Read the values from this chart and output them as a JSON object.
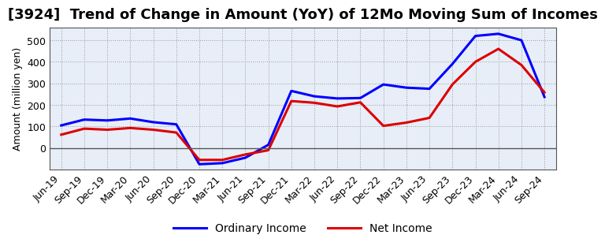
{
  "title": "[3924]  Trend of Change in Amount (YoY) of 12Mo Moving Sum of Incomes",
  "ylabel": "Amount (million yen)",
  "x_labels": [
    "Jun-19",
    "Sep-19",
    "Dec-19",
    "Mar-20",
    "Jun-20",
    "Sep-20",
    "Dec-20",
    "Mar-21",
    "Jun-21",
    "Sep-21",
    "Dec-21",
    "Mar-22",
    "Jun-22",
    "Sep-22",
    "Dec-22",
    "Mar-23",
    "Jun-23",
    "Sep-23",
    "Dec-23",
    "Mar-24",
    "Jun-24",
    "Sep-24"
  ],
  "ordinary_income": [
    105,
    132,
    128,
    137,
    120,
    110,
    -75,
    -70,
    -45,
    15,
    265,
    240,
    230,
    232,
    295,
    280,
    275,
    390,
    520,
    530,
    500,
    237
  ],
  "net_income": [
    62,
    90,
    85,
    93,
    85,
    72,
    -55,
    -55,
    -30,
    -10,
    218,
    210,
    193,
    212,
    103,
    118,
    140,
    295,
    400,
    460,
    385,
    258
  ],
  "ordinary_color": "#0000ff",
  "net_color": "#dd0000",
  "line_width": 2.2,
  "ylim_min": -100,
  "ylim_max": 560,
  "yticks": [
    0,
    100,
    200,
    300,
    400,
    500
  ],
  "grid_color": "#999999",
  "bg_color": "#ffffff",
  "plot_bg_color": "#e8eef8",
  "legend_labels": [
    "Ordinary Income",
    "Net Income"
  ],
  "title_fontsize": 13,
  "axis_label_fontsize": 9,
  "tick_fontsize": 9
}
